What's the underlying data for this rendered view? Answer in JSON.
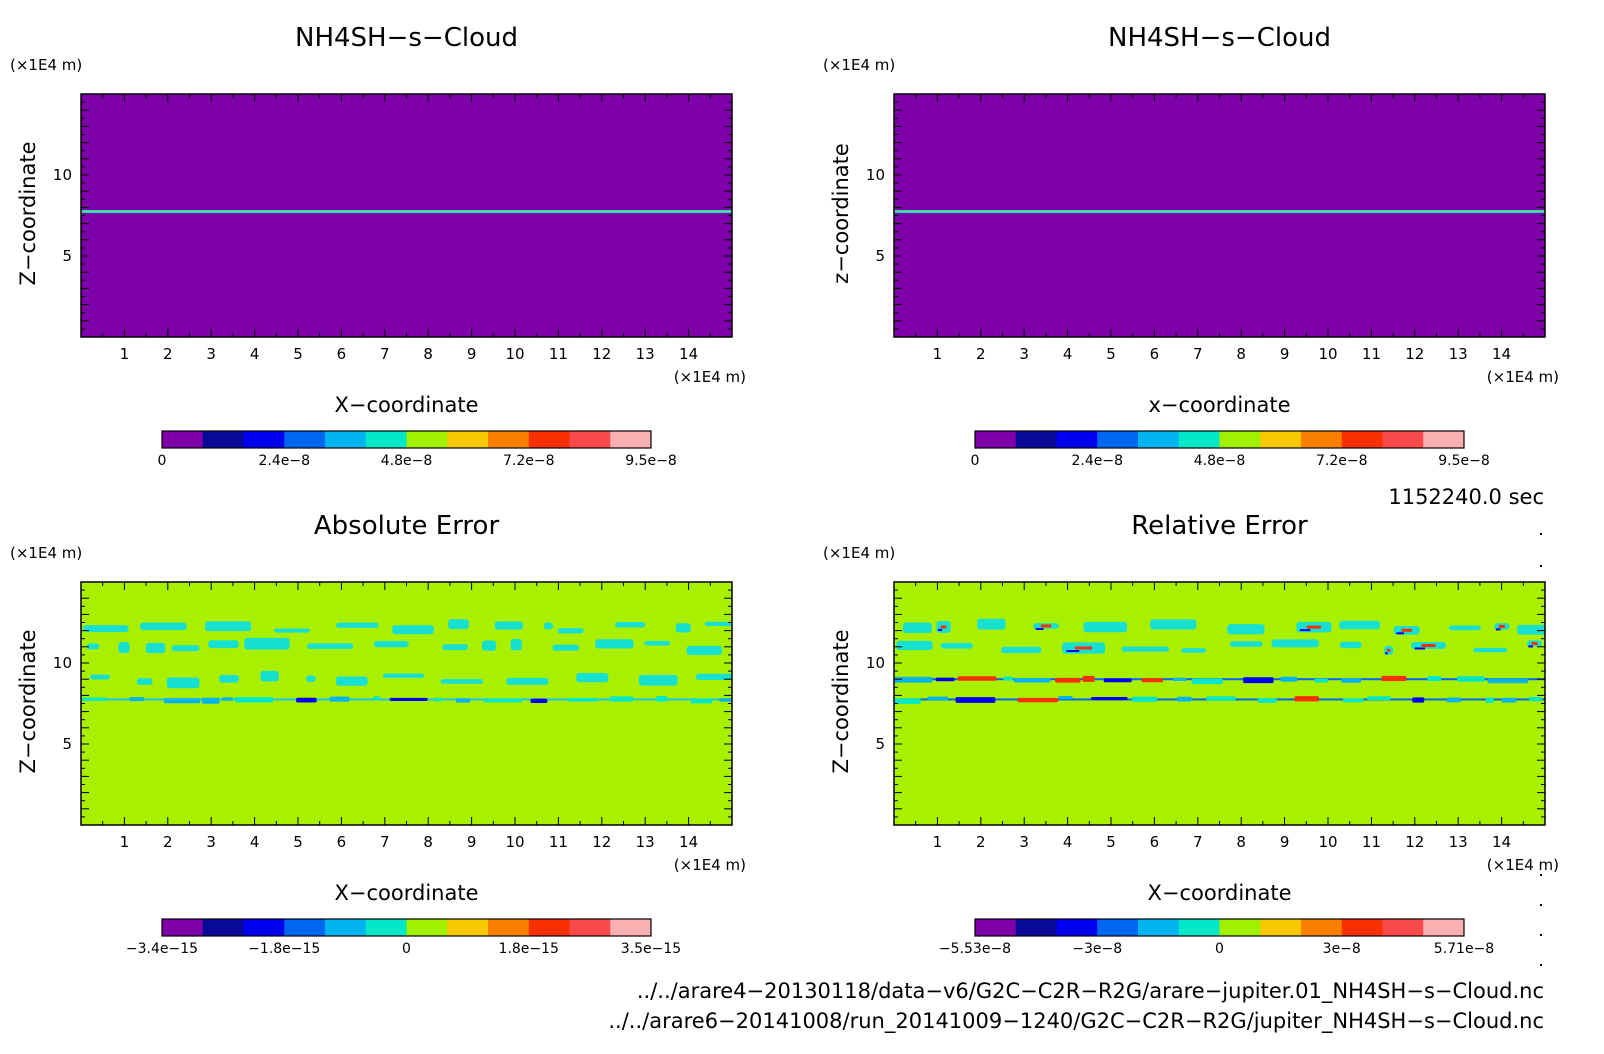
{
  "chart_data": [
    {
      "type": "heatmap",
      "title": "NH4SH−s−Cloud",
      "xlabel": "X−coordinate",
      "ylabel": "Z−coordinate",
      "x_unit": "(×1E4 m)",
      "y_unit": "(×1E4 m)",
      "xlim": [
        0,
        15
      ],
      "ylim": [
        0,
        15
      ],
      "x_ticks": [
        "1",
        "2",
        "3",
        "4",
        "5",
        "6",
        "7",
        "8",
        "9",
        "10",
        "11",
        "12",
        "13",
        "14"
      ],
      "y_ticks": [
        "5",
        "10"
      ],
      "background_color": "#7d00a8",
      "features": [
        {
          "z": 7.75,
          "kind": "thin-band",
          "color": "#18d8d8"
        }
      ],
      "colorbar": {
        "colors": [
          "#7d00a8",
          "#0a0a9a",
          "#0000f0",
          "#0068f0",
          "#00b4f0",
          "#00e8c8",
          "#a0f000",
          "#f8c800",
          "#f88000",
          "#f83000",
          "#f84a4a",
          "#f8b0b0"
        ],
        "tick_labels": [
          "0",
          "2.4e−8",
          "4.8e−8",
          "7.2e−8",
          "9.5e−8"
        ]
      }
    },
    {
      "type": "heatmap",
      "title": "NH4SH−s−Cloud",
      "xlabel": "x−coordinate",
      "ylabel": "z−coordinate",
      "x_unit": "(×1E4 m)",
      "y_unit": "(×1E4 m)",
      "xlim": [
        0,
        15
      ],
      "ylim": [
        0,
        15
      ],
      "x_ticks": [
        "1",
        "2",
        "3",
        "4",
        "5",
        "6",
        "7",
        "8",
        "9",
        "10",
        "11",
        "12",
        "13",
        "14"
      ],
      "y_ticks": [
        "5",
        "10"
      ],
      "background_color": "#7d00a8",
      "features": [
        {
          "z": 7.75,
          "kind": "thin-band",
          "color": "#18d8d8"
        }
      ],
      "colorbar": {
        "colors": [
          "#7d00a8",
          "#0a0a9a",
          "#0000f0",
          "#0068f0",
          "#00b4f0",
          "#00e8c8",
          "#a0f000",
          "#f8c800",
          "#f88000",
          "#f83000",
          "#f84a4a",
          "#f8b0b0"
        ],
        "tick_labels": [
          "0",
          "2.4e−8",
          "4.8e−8",
          "7.2e−8",
          "9.5e−8"
        ]
      }
    },
    {
      "type": "heatmap",
      "title": "Absolute Error",
      "xlabel": "X−coordinate",
      "ylabel": "Z−coordinate",
      "x_unit": "(×1E4 m)",
      "y_unit": "(×1E4 m)",
      "xlim": [
        0,
        15
      ],
      "ylim": [
        0,
        15
      ],
      "x_ticks": [
        "1",
        "2",
        "3",
        "4",
        "5",
        "6",
        "7",
        "8",
        "9",
        "10",
        "11",
        "12",
        "13",
        "14"
      ],
      "y_ticks": [
        "5",
        "10"
      ],
      "background_color": "#a8f000",
      "features": [
        {
          "z": 12.2,
          "kind": "patches",
          "color": "#18e0d0",
          "seed": 3
        },
        {
          "z": 11.0,
          "kind": "patches",
          "color": "#18e0d0",
          "seed": 7
        },
        {
          "z": 9.0,
          "kind": "patches",
          "color": "#18e0d0",
          "seed": 11
        },
        {
          "z": 7.75,
          "kind": "mixed-line",
          "color": "#18c8e8",
          "seed": 13
        }
      ],
      "colorbar": {
        "colors": [
          "#7d00a8",
          "#0a0a9a",
          "#0000f0",
          "#0068f0",
          "#00b4f0",
          "#00e8c8",
          "#a0f000",
          "#f8c800",
          "#f88000",
          "#f83000",
          "#f84a4a",
          "#f8b0b0"
        ],
        "tick_labels": [
          "−3.4e−15",
          "−1.8e−15",
          "0",
          "1.8e−15",
          "3.5e−15"
        ]
      }
    },
    {
      "type": "heatmap",
      "title": "Relative Error",
      "xlabel": "X−coordinate",
      "ylabel": "Z−coordinate",
      "x_unit": "(×1E4 m)",
      "y_unit": "(×1E4 m)",
      "xlim": [
        0,
        15
      ],
      "ylim": [
        0,
        15
      ],
      "x_ticks": [
        "1",
        "2",
        "3",
        "4",
        "5",
        "6",
        "7",
        "8",
        "9",
        "10",
        "11",
        "12",
        "13",
        "14"
      ],
      "y_ticks": [
        "5",
        "10"
      ],
      "background_color": "#a8f000",
      "features": [
        {
          "z": 12.2,
          "kind": "patches-red",
          "color": "#18e0d0",
          "seed": 5
        },
        {
          "z": 11.0,
          "kind": "patches-red",
          "color": "#18e0d0",
          "seed": 9
        },
        {
          "z": 9.0,
          "kind": "mixed-line",
          "color": "#0068f0",
          "seed": 17
        },
        {
          "z": 7.75,
          "kind": "mixed-line",
          "color": "#0068f0",
          "seed": 19
        }
      ],
      "colorbar": {
        "colors": [
          "#7d00a8",
          "#0a0a9a",
          "#0000f0",
          "#0068f0",
          "#00b4f0",
          "#00e8c8",
          "#a0f000",
          "#f8c800",
          "#f88000",
          "#f83000",
          "#f84a4a",
          "#f8b0b0"
        ],
        "tick_labels": [
          "−5.53e−8",
          "−3e−8",
          "0",
          "3e−8",
          "5.71e−8"
        ]
      }
    }
  ],
  "time_label": "1152240.0 sec",
  "file_paths": [
    "../../arare4−20130118/data−v6/G2C−C2R−R2G/arare−jupiter.01_NH4SH−s−Cloud.nc",
    "../../arare6−20141008/run_20141009−1240/G2C−C2R−R2G/jupiter_NH4SH−s−Cloud.nc"
  ]
}
